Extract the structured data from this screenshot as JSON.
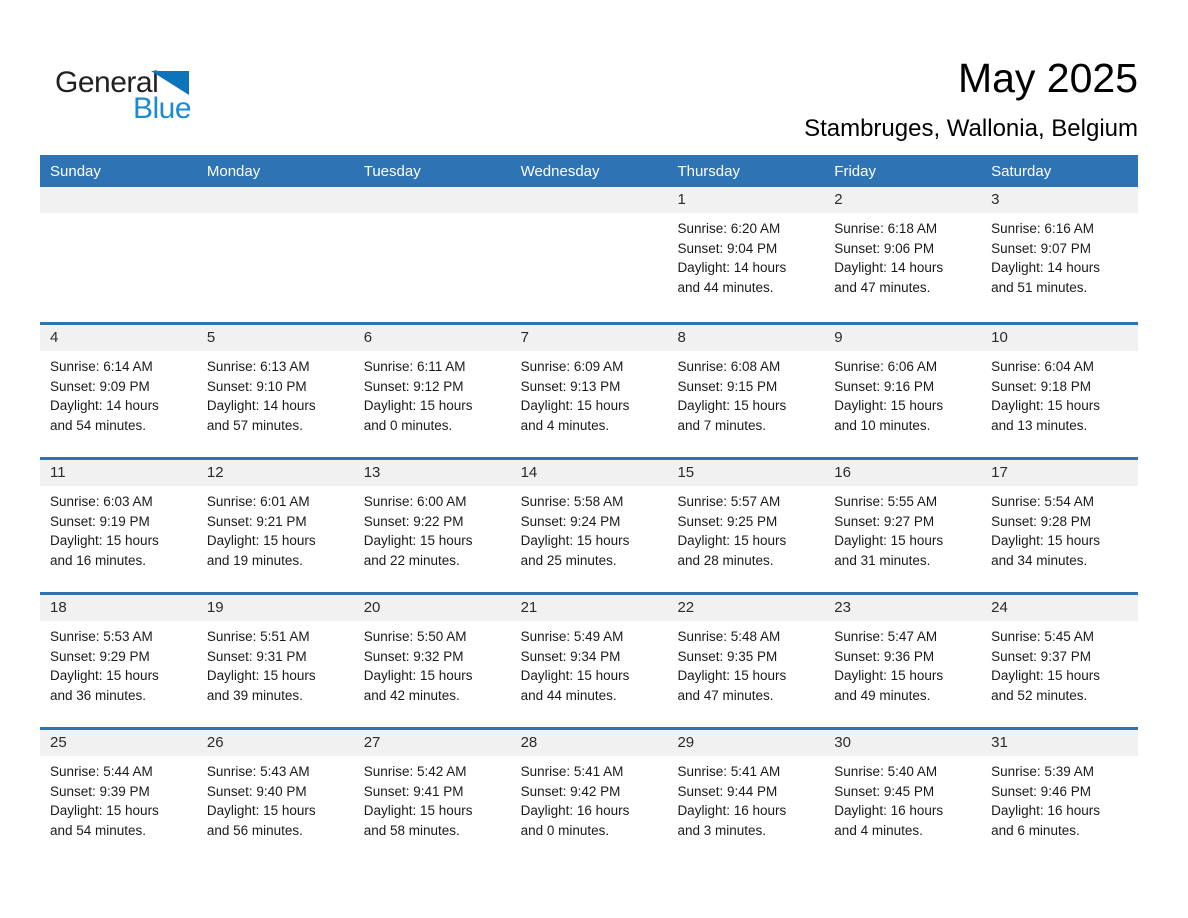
{
  "logo": {
    "text_general": "General",
    "text_blue": "Blue"
  },
  "header": {
    "title": "May 2025",
    "subtitle": "Stambruges, Wallonia, Belgium"
  },
  "weekday_headers": [
    "Sunday",
    "Monday",
    "Tuesday",
    "Wednesday",
    "Thursday",
    "Friday",
    "Saturday"
  ],
  "colors": {
    "header_blue": "#2E74B5",
    "row_border_blue": "#2E74B5",
    "day_band_gray": "#F1F1F1",
    "logo_triangle_blue": "#0D74BC",
    "logo_blue_text": "#1B8AD3"
  },
  "weeks": [
    [
      {
        "day": "",
        "lines": []
      },
      {
        "day": "",
        "lines": []
      },
      {
        "day": "",
        "lines": []
      },
      {
        "day": "",
        "lines": []
      },
      {
        "day": "1",
        "lines": [
          "Sunrise: 6:20 AM",
          "Sunset: 9:04 PM",
          "Daylight: 14 hours",
          "and 44 minutes."
        ]
      },
      {
        "day": "2",
        "lines": [
          "Sunrise: 6:18 AM",
          "Sunset: 9:06 PM",
          "Daylight: 14 hours",
          "and 47 minutes."
        ]
      },
      {
        "day": "3",
        "lines": [
          "Sunrise: 6:16 AM",
          "Sunset: 9:07 PM",
          "Daylight: 14 hours",
          "and 51 minutes."
        ]
      }
    ],
    [
      {
        "day": "4",
        "lines": [
          "Sunrise: 6:14 AM",
          "Sunset: 9:09 PM",
          "Daylight: 14 hours",
          "and 54 minutes."
        ]
      },
      {
        "day": "5",
        "lines": [
          "Sunrise: 6:13 AM",
          "Sunset: 9:10 PM",
          "Daylight: 14 hours",
          "and 57 minutes."
        ]
      },
      {
        "day": "6",
        "lines": [
          "Sunrise: 6:11 AM",
          "Sunset: 9:12 PM",
          "Daylight: 15 hours",
          "and 0 minutes."
        ]
      },
      {
        "day": "7",
        "lines": [
          "Sunrise: 6:09 AM",
          "Sunset: 9:13 PM",
          "Daylight: 15 hours",
          "and 4 minutes."
        ]
      },
      {
        "day": "8",
        "lines": [
          "Sunrise: 6:08 AM",
          "Sunset: 9:15 PM",
          "Daylight: 15 hours",
          "and 7 minutes."
        ]
      },
      {
        "day": "9",
        "lines": [
          "Sunrise: 6:06 AM",
          "Sunset: 9:16 PM",
          "Daylight: 15 hours",
          "and 10 minutes."
        ]
      },
      {
        "day": "10",
        "lines": [
          "Sunrise: 6:04 AM",
          "Sunset: 9:18 PM",
          "Daylight: 15 hours",
          "and 13 minutes."
        ]
      }
    ],
    [
      {
        "day": "11",
        "lines": [
          "Sunrise: 6:03 AM",
          "Sunset: 9:19 PM",
          "Daylight: 15 hours",
          "and 16 minutes."
        ]
      },
      {
        "day": "12",
        "lines": [
          "Sunrise: 6:01 AM",
          "Sunset: 9:21 PM",
          "Daylight: 15 hours",
          "and 19 minutes."
        ]
      },
      {
        "day": "13",
        "lines": [
          "Sunrise: 6:00 AM",
          "Sunset: 9:22 PM",
          "Daylight: 15 hours",
          "and 22 minutes."
        ]
      },
      {
        "day": "14",
        "lines": [
          "Sunrise: 5:58 AM",
          "Sunset: 9:24 PM",
          "Daylight: 15 hours",
          "and 25 minutes."
        ]
      },
      {
        "day": "15",
        "lines": [
          "Sunrise: 5:57 AM",
          "Sunset: 9:25 PM",
          "Daylight: 15 hours",
          "and 28 minutes."
        ]
      },
      {
        "day": "16",
        "lines": [
          "Sunrise: 5:55 AM",
          "Sunset: 9:27 PM",
          "Daylight: 15 hours",
          "and 31 minutes."
        ]
      },
      {
        "day": "17",
        "lines": [
          "Sunrise: 5:54 AM",
          "Sunset: 9:28 PM",
          "Daylight: 15 hours",
          "and 34 minutes."
        ]
      }
    ],
    [
      {
        "day": "18",
        "lines": [
          "Sunrise: 5:53 AM",
          "Sunset: 9:29 PM",
          "Daylight: 15 hours",
          "and 36 minutes."
        ]
      },
      {
        "day": "19",
        "lines": [
          "Sunrise: 5:51 AM",
          "Sunset: 9:31 PM",
          "Daylight: 15 hours",
          "and 39 minutes."
        ]
      },
      {
        "day": "20",
        "lines": [
          "Sunrise: 5:50 AM",
          "Sunset: 9:32 PM",
          "Daylight: 15 hours",
          "and 42 minutes."
        ]
      },
      {
        "day": "21",
        "lines": [
          "Sunrise: 5:49 AM",
          "Sunset: 9:34 PM",
          "Daylight: 15 hours",
          "and 44 minutes."
        ]
      },
      {
        "day": "22",
        "lines": [
          "Sunrise: 5:48 AM",
          "Sunset: 9:35 PM",
          "Daylight: 15 hours",
          "and 47 minutes."
        ]
      },
      {
        "day": "23",
        "lines": [
          "Sunrise: 5:47 AM",
          "Sunset: 9:36 PM",
          "Daylight: 15 hours",
          "and 49 minutes."
        ]
      },
      {
        "day": "24",
        "lines": [
          "Sunrise: 5:45 AM",
          "Sunset: 9:37 PM",
          "Daylight: 15 hours",
          "and 52 minutes."
        ]
      }
    ],
    [
      {
        "day": "25",
        "lines": [
          "Sunrise: 5:44 AM",
          "Sunset: 9:39 PM",
          "Daylight: 15 hours",
          "and 54 minutes."
        ]
      },
      {
        "day": "26",
        "lines": [
          "Sunrise: 5:43 AM",
          "Sunset: 9:40 PM",
          "Daylight: 15 hours",
          "and 56 minutes."
        ]
      },
      {
        "day": "27",
        "lines": [
          "Sunrise: 5:42 AM",
          "Sunset: 9:41 PM",
          "Daylight: 15 hours",
          "and 58 minutes."
        ]
      },
      {
        "day": "28",
        "lines": [
          "Sunrise: 5:41 AM",
          "Sunset: 9:42 PM",
          "Daylight: 16 hours",
          "and 0 minutes."
        ]
      },
      {
        "day": "29",
        "lines": [
          "Sunrise: 5:41 AM",
          "Sunset: 9:44 PM",
          "Daylight: 16 hours",
          "and 3 minutes."
        ]
      },
      {
        "day": "30",
        "lines": [
          "Sunrise: 5:40 AM",
          "Sunset: 9:45 PM",
          "Daylight: 16 hours",
          "and 4 minutes."
        ]
      },
      {
        "day": "31",
        "lines": [
          "Sunrise: 5:39 AM",
          "Sunset: 9:46 PM",
          "Daylight: 16 hours",
          "and 6 minutes."
        ]
      }
    ]
  ]
}
